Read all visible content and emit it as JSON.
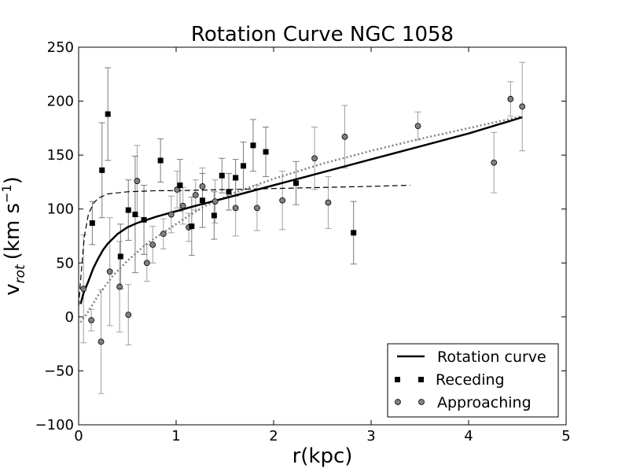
{
  "chart_data": {
    "type": "scatter",
    "title": "Rotation Curve NGC 1058",
    "xlabel": "r(kpc)",
    "ylabel_main": "v",
    "ylabel_sub": "rot",
    "ylabel_unit_open": "(km s",
    "ylabel_unit_exp": "−1",
    "ylabel_unit_close": ")",
    "xlim": [
      0,
      5
    ],
    "ylim": [
      -100,
      250
    ],
    "xticks": [
      0,
      1,
      2,
      3,
      4,
      5
    ],
    "yticks": [
      -100,
      -50,
      0,
      50,
      100,
      150,
      200,
      250
    ],
    "grid": false,
    "legend_position": "lower-right",
    "legend": [
      {
        "label": "Rotation curve",
        "style": "line"
      },
      {
        "label": "Receding",
        "style": "square"
      },
      {
        "label": "Approaching",
        "style": "circle"
      }
    ],
    "rotation_curve": {
      "name": "Rotation curve",
      "x": [
        0.02,
        0.05,
        0.1,
        0.15,
        0.2,
        0.25,
        0.3,
        0.4,
        0.5,
        0.6,
        0.7,
        0.8,
        1.0,
        1.2,
        1.5,
        2.0,
        2.5,
        3.0,
        3.5,
        4.0,
        4.55
      ],
      "y": [
        12,
        22,
        33,
        45,
        54,
        62,
        68,
        77,
        83,
        87,
        90,
        93,
        98,
        103,
        110,
        122,
        134,
        146,
        158,
        170,
        185
      ]
    },
    "receding_model": {
      "name": "Receding model (dashed)",
      "x": [
        0.0,
        0.03,
        0.06,
        0.1,
        0.15,
        0.2,
        0.25,
        0.3,
        0.5,
        0.8,
        1.0,
        1.5,
        2.0,
        2.5,
        3.0,
        3.4
      ],
      "y": [
        10,
        45,
        75,
        95,
        105,
        110,
        112,
        114,
        116,
        117,
        117,
        118,
        119,
        120,
        121,
        122
      ]
    },
    "approaching_model": {
      "name": "Approaching model (dotted)",
      "x": [
        0.02,
        0.1,
        0.2,
        0.35,
        0.5,
        0.7,
        0.9,
        1.1,
        1.3,
        1.6,
        2.0,
        2.5,
        3.0,
        3.5,
        4.0,
        4.55
      ],
      "y": [
        -5,
        5,
        20,
        38,
        52,
        68,
        80,
        92,
        103,
        115,
        128,
        142,
        154,
        165,
        175,
        186
      ]
    },
    "receding": {
      "name": "Receding",
      "points": [
        {
          "x": 0.14,
          "y": 87,
          "err": 20
        },
        {
          "x": 0.24,
          "y": 136,
          "err": 44
        },
        {
          "x": 0.3,
          "y": 188,
          "err": 43
        },
        {
          "x": 0.43,
          "y": 56,
          "err": 30
        },
        {
          "x": 0.51,
          "y": 99,
          "err": 28
        },
        {
          "x": 0.58,
          "y": 95,
          "err": 54
        },
        {
          "x": 0.67,
          "y": 90,
          "err": 32
        },
        {
          "x": 0.84,
          "y": 145,
          "err": 20
        },
        {
          "x": 1.04,
          "y": 122,
          "err": 24
        },
        {
          "x": 1.16,
          "y": 84,
          "err": 27
        },
        {
          "x": 1.27,
          "y": 108,
          "err": 25
        },
        {
          "x": 1.39,
          "y": 94,
          "err": 22
        },
        {
          "x": 1.47,
          "y": 131,
          "err": 16
        },
        {
          "x": 1.54,
          "y": 116,
          "err": 17
        },
        {
          "x": 1.61,
          "y": 129,
          "err": 17
        },
        {
          "x": 1.69,
          "y": 140,
          "err": 22
        },
        {
          "x": 1.79,
          "y": 159,
          "err": 24
        },
        {
          "x": 1.92,
          "y": 153,
          "err": 23
        },
        {
          "x": 2.23,
          "y": 124,
          "err": 20
        },
        {
          "x": 2.82,
          "y": 78,
          "err": 29
        }
      ]
    },
    "approaching": {
      "name": "Approaching",
      "points": [
        {
          "x": 0.05,
          "y": 26,
          "err": 50
        },
        {
          "x": 0.13,
          "y": -3,
          "err": 10
        },
        {
          "x": 0.23,
          "y": -23,
          "err": 48
        },
        {
          "x": 0.32,
          "y": 42,
          "err": 50
        },
        {
          "x": 0.42,
          "y": 28,
          "err": 42
        },
        {
          "x": 0.51,
          "y": 2,
          "err": 28
        },
        {
          "x": 0.6,
          "y": 126,
          "err": 33
        },
        {
          "x": 0.7,
          "y": 50,
          "err": 17
        },
        {
          "x": 0.76,
          "y": 67,
          "err": 17
        },
        {
          "x": 0.87,
          "y": 77,
          "err": 14
        },
        {
          "x": 0.95,
          "y": 95,
          "err": 17
        },
        {
          "x": 1.01,
          "y": 118,
          "err": 17
        },
        {
          "x": 1.07,
          "y": 103,
          "err": 17
        },
        {
          "x": 1.13,
          "y": 83,
          "err": 13
        },
        {
          "x": 1.2,
          "y": 113,
          "err": 14
        },
        {
          "x": 1.27,
          "y": 121,
          "err": 17
        },
        {
          "x": 1.4,
          "y": 107,
          "err": 20
        },
        {
          "x": 1.61,
          "y": 101,
          "err": 26
        },
        {
          "x": 1.83,
          "y": 101,
          "err": 21
        },
        {
          "x": 2.09,
          "y": 108,
          "err": 27
        },
        {
          "x": 2.42,
          "y": 147,
          "err": 29
        },
        {
          "x": 2.56,
          "y": 106,
          "err": 24
        },
        {
          "x": 2.73,
          "y": 167,
          "err": 29
        },
        {
          "x": 3.48,
          "y": 177,
          "err": 13
        },
        {
          "x": 4.26,
          "y": 143,
          "err": 28
        },
        {
          "x": 4.43,
          "y": 202,
          "err": 16
        },
        {
          "x": 4.55,
          "y": 195,
          "err": 41
        }
      ]
    }
  }
}
